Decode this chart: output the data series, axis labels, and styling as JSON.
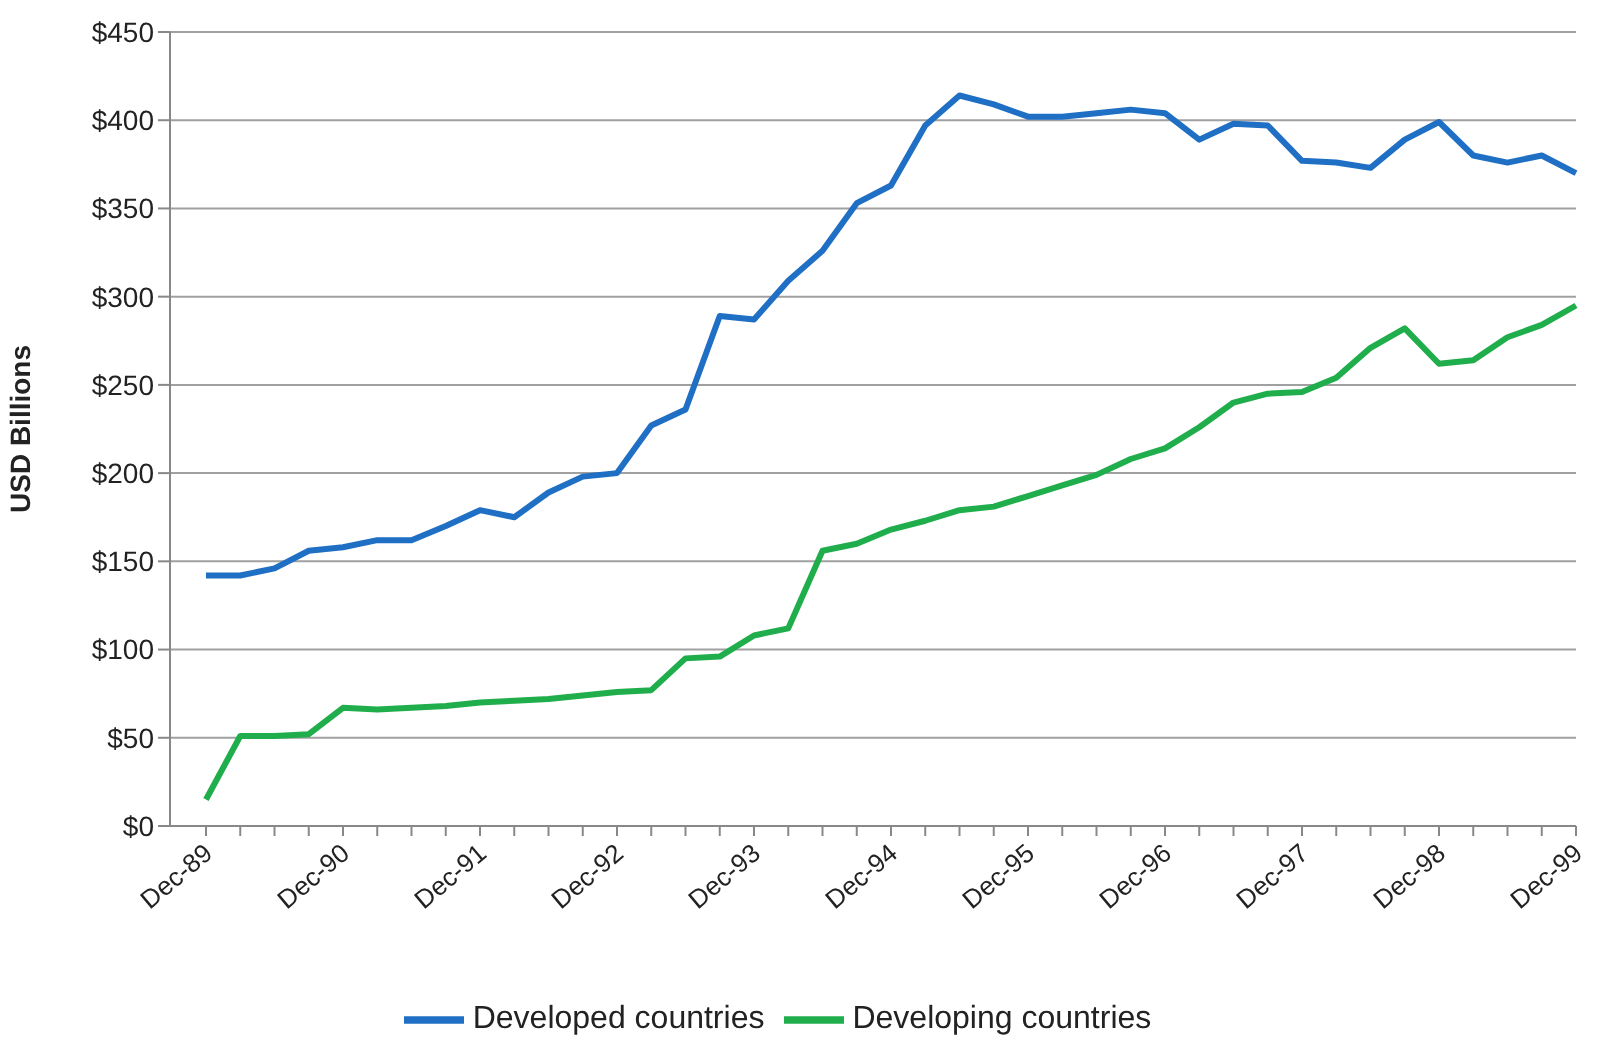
{
  "chart_data": {
    "type": "line",
    "ylabel": "USD Billions",
    "categories": [
      "Dec-89",
      null,
      null,
      null,
      "Dec-90",
      null,
      null,
      null,
      "Dec-91",
      null,
      null,
      null,
      "Dec-92",
      null,
      null,
      null,
      "Dec-93",
      null,
      null,
      null,
      "Dec-94",
      null,
      null,
      null,
      "Dec-95",
      null,
      null,
      null,
      "Dec-96",
      null,
      null,
      null,
      "Dec-97",
      null,
      null,
      null,
      "Dec-98",
      null,
      null,
      null,
      "Dec-99"
    ],
    "series": [
      {
        "name": "Developed countries",
        "color": "#1f6fc5",
        "values": [
          142,
          142,
          146,
          156,
          158,
          162,
          162,
          170,
          179,
          175,
          189,
          198,
          200,
          227,
          236,
          289,
          287,
          309,
          326,
          353,
          363,
          397,
          414,
          409,
          402,
          402,
          404,
          406,
          404,
          389,
          398,
          397,
          377,
          376,
          373,
          389,
          399,
          380,
          376,
          380,
          370
        ]
      },
      {
        "name": "Developing countries",
        "color": "#1fae4b",
        "values": [
          15,
          51,
          51,
          52,
          67,
          66,
          67,
          68,
          70,
          71,
          72,
          74,
          76,
          77,
          95,
          96,
          108,
          112,
          156,
          160,
          168,
          173,
          179,
          181,
          187,
          193,
          199,
          208,
          214,
          226,
          240,
          245,
          246,
          254,
          271,
          282,
          262,
          264,
          277,
          284,
          295
        ]
      }
    ],
    "ylim": [
      0,
      450
    ],
    "yticks": [
      {
        "value": 0,
        "label": "$0"
      },
      {
        "value": 50,
        "label": "$50"
      },
      {
        "value": 100,
        "label": "$100"
      },
      {
        "value": 150,
        "label": "$150"
      },
      {
        "value": 200,
        "label": "$200"
      },
      {
        "value": 250,
        "label": "$250"
      },
      {
        "value": 300,
        "label": "$300"
      },
      {
        "value": 350,
        "label": "$350"
      },
      {
        "value": 400,
        "label": "$400"
      },
      {
        "value": 450,
        "label": "$450"
      }
    ],
    "grid": "y",
    "legend": "bottom",
    "marker": "none",
    "line_style": "solid"
  }
}
